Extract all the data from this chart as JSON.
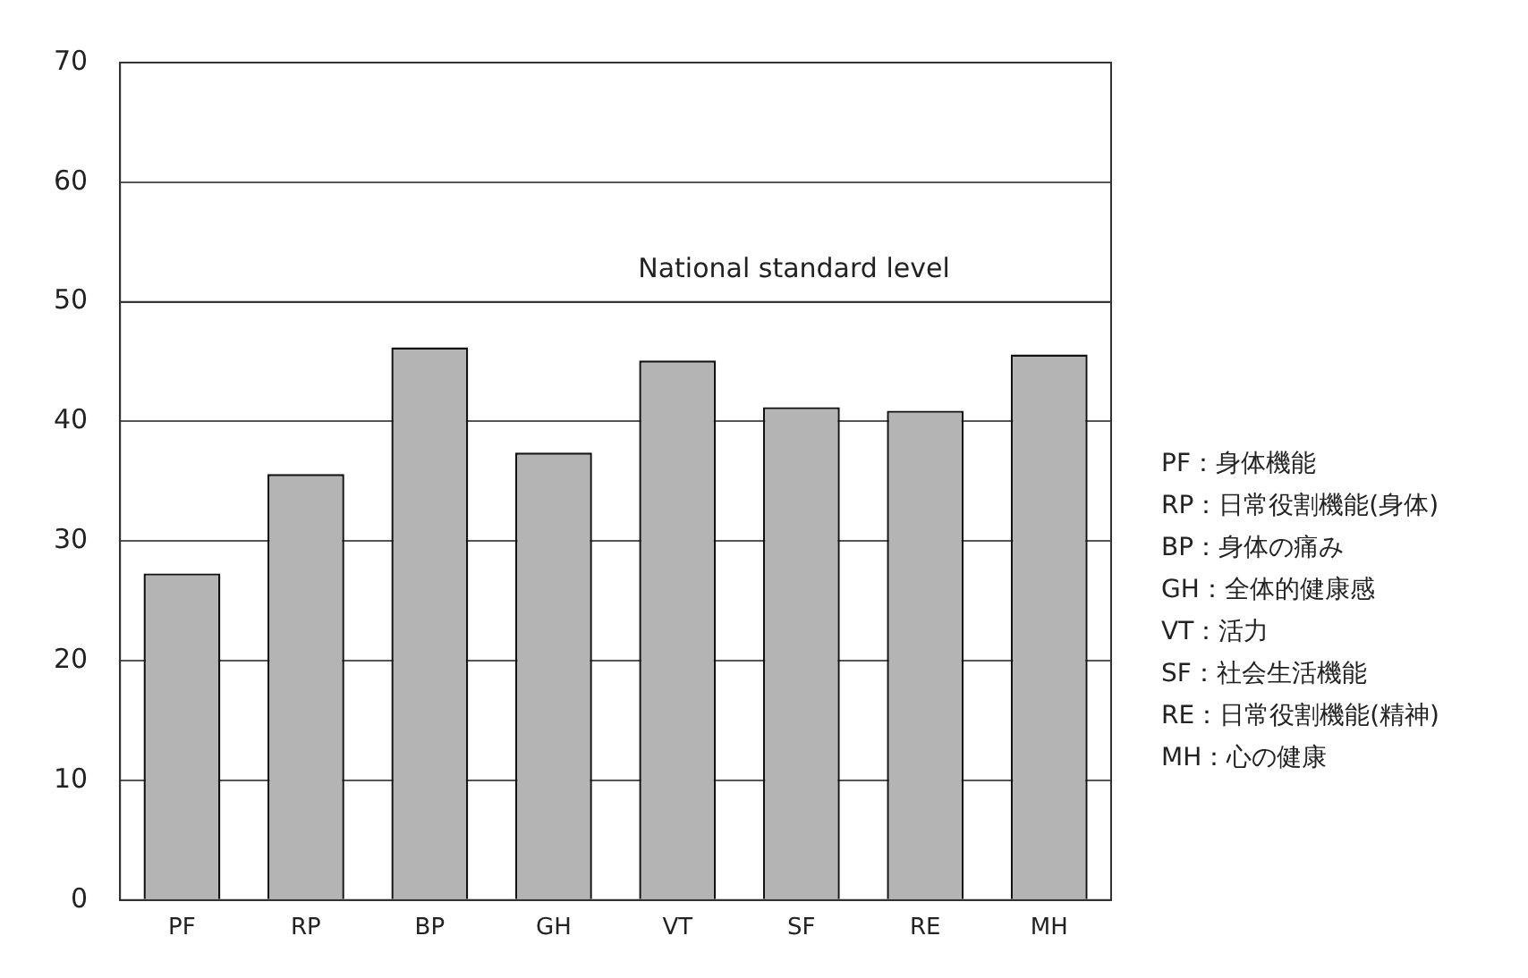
{
  "chart_data": {
    "type": "bar",
    "categories": [
      "PF",
      "RP",
      "BP",
      "GH",
      "VT",
      "SF",
      "RE",
      "MH"
    ],
    "values": [
      27.3,
      35.6,
      46.2,
      37.4,
      45.1,
      41.2,
      40.9,
      45.6
    ],
    "color": "#b4b4b4",
    "ylim": [
      0,
      70
    ],
    "yticks": [
      0,
      10,
      20,
      30,
      40,
      50,
      60,
      70
    ],
    "grid": "y",
    "ref_lines": [
      {
        "axis": "y",
        "value": 50,
        "label": "National standard level",
        "color": "#333333"
      }
    ],
    "annotations": [
      "PF：身体機能",
      "RP：日常役割機能(身体)",
      "BP：身体の痛み",
      "GH：全体的健康感",
      "VT：活力",
      "SF：社会生活機能",
      "RE：日常役割機能(精神)",
      "MH：心の健康"
    ]
  }
}
